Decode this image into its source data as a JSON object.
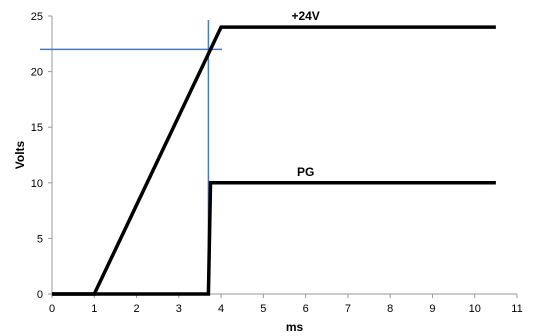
{
  "chart_data": {
    "type": "line",
    "title": "",
    "xlabel": "ms",
    "ylabel": "Volts",
    "xlim": [
      0,
      11
    ],
    "ylim": [
      0,
      25
    ],
    "x_ticks": [
      "0",
      "1",
      "2",
      "3",
      "4",
      "5",
      "6",
      "7",
      "8",
      "9",
      "10",
      "11"
    ],
    "y_ticks": [
      "0",
      "5",
      "10",
      "15",
      "20",
      "25"
    ],
    "grid": false,
    "legend": "none",
    "series": [
      {
        "name": "+24V",
        "color": "#000000",
        "points": [
          [
            0,
            0
          ],
          [
            1,
            0
          ],
          [
            3.75,
            22
          ],
          [
            4.0,
            24
          ],
          [
            10.5,
            24
          ]
        ]
      },
      {
        "name": "PG",
        "color": "#000000",
        "points": [
          [
            0,
            0
          ],
          [
            3.7,
            0
          ],
          [
            3.75,
            10
          ],
          [
            10.5,
            10
          ]
        ]
      }
    ],
    "reference_lines": {
      "color": "#4a7ab8",
      "vertical_x": 3.7,
      "horizontal_y": 22
    }
  }
}
